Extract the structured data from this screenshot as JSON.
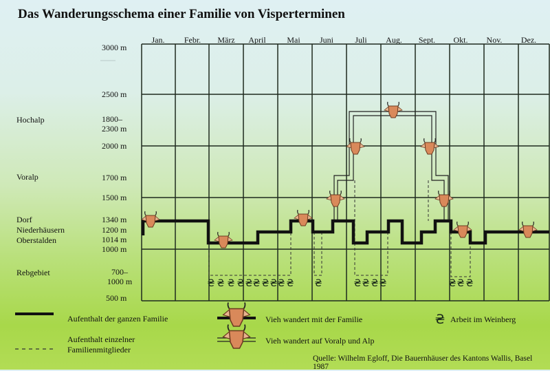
{
  "title": "Das Wanderungsschema einer Familie von Visperterminen",
  "months": [
    "Jan.",
    "Febr.",
    "März",
    "April",
    "Mai",
    "Juni",
    "Juli",
    "Aug.",
    "Sept.",
    "Okt.",
    "Nov.",
    "Dez."
  ],
  "altitude_labels": [
    {
      "text": "3000 m"
    },
    {
      "text": "2500 m"
    },
    {
      "text": "1800–\n2300 m"
    },
    {
      "text": "2000 m"
    },
    {
      "text": "1700 m"
    },
    {
      "text": "1500 m"
    },
    {
      "text": "1340 m"
    },
    {
      "text": "1200 m"
    },
    {
      "text": "1014 m"
    },
    {
      "text": "1000 m"
    },
    {
      "text": "700–\n1000 m"
    },
    {
      "text": "500 m"
    }
  ],
  "zones": {
    "hochalp": "Hochalp",
    "voralp": "Voralp",
    "dorf": "Dorf",
    "niederhaeusern": "Niederhäusern",
    "oberstalden": "Oberstalden",
    "rebgebiet": "Rebgebiet"
  },
  "legend": {
    "family": "Aufenthalt der ganzen Familie",
    "members_line1": "Aufenthalt einzelner",
    "members_line2": "Familienmitglieder",
    "cattle_with_family": "Vieh wandert mit der Familie",
    "cattle_alp": "Vieh wandert auf Voralp und Alp",
    "vineyard": "Arbeit im Weinberg"
  },
  "source": "Quelle: Wilhelm Egloff, Die Bauernhäuser des Kantons Wallis, Basel 1987",
  "colors": {
    "line": "#111111",
    "cow_fill": "#d9895a",
    "cow_ear": "#e8b48e",
    "grid": "#1e2a1e"
  },
  "family_path": {
    "levels": [
      "Dorf",
      "Oberstalden",
      "Niederhäusern",
      "Dorf",
      "Niederhäusern",
      "Dorf",
      "Oberstalden",
      "Niederhäusern",
      "Dorf",
      "Oberstalden",
      "Niederhäusern",
      "Oberstalden",
      "Niederhäusern",
      "Dorf",
      "Niederhäusern",
      "Oberstalden",
      "Niederhäusern"
    ]
  },
  "vineyard_groups": [
    {
      "months": "März–Mai",
      "count": 10
    },
    {
      "months": "Juni",
      "count": 1
    },
    {
      "months": "Juli–Aug.",
      "count": 4
    },
    {
      "months": "Okt.",
      "count": 3
    }
  ]
}
